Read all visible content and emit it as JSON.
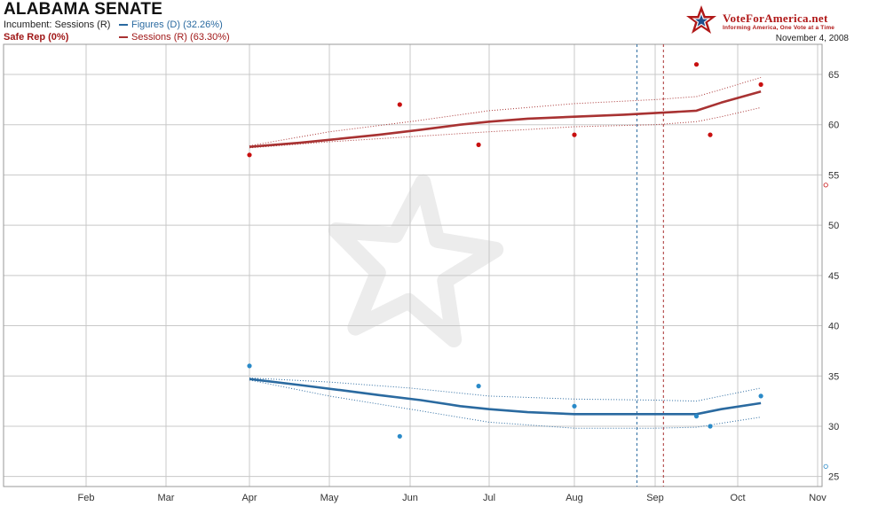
{
  "header": {
    "title": "ALABAMA SENATE",
    "incumbent": "Incumbent: Sessions (R)",
    "rating": "Safe Rep (0%)",
    "date": "November 4, 2008"
  },
  "brand": {
    "name": "VoteForAmerica.net",
    "tagline": "Informing America, One Vote at a Time",
    "logo_icon": "star-logo-icon"
  },
  "colors": {
    "dem": "#2a6aa0",
    "rep": "#a83232",
    "dem_point": "#2a8ac8",
    "rep_point": "#c81010",
    "grid": "#c8c8c8"
  },
  "chart_data": {
    "type": "line",
    "title": "ALABAMA SENATE",
    "xlabel": "",
    "ylabel": "",
    "x_axis_labels": [
      "Feb",
      "Mar",
      "Apr",
      "May",
      "Jun",
      "Jul",
      "Aug",
      "Sep",
      "Oct",
      "Nov"
    ],
    "x_axis_months": [
      2,
      3,
      4,
      5,
      6,
      7,
      8,
      9,
      10,
      11
    ],
    "ylim": [
      24,
      68
    ],
    "y_ticks": [
      25,
      30,
      35,
      40,
      45,
      50,
      55,
      60,
      65
    ],
    "grid": true,
    "legend_position": "top-left",
    "vertical_lines": [
      {
        "date": "2008-08-25",
        "color": "dem"
      },
      {
        "date": "2008-09-04",
        "color": "rep"
      }
    ],
    "series": [
      {
        "name": "Figures (D)",
        "share": "32.26%",
        "color_key": "dem",
        "trend": [
          [
            "2008-04-01",
            34.7
          ],
          [
            "2008-04-20",
            34.1
          ],
          [
            "2008-05-05",
            33.6
          ],
          [
            "2008-05-20",
            33.1
          ],
          [
            "2008-06-05",
            32.6
          ],
          [
            "2008-06-20",
            32.0
          ],
          [
            "2008-07-01",
            31.7
          ],
          [
            "2008-07-15",
            31.4
          ],
          [
            "2008-08-01",
            31.2
          ],
          [
            "2008-08-20",
            31.2
          ],
          [
            "2008-09-10",
            31.2
          ],
          [
            "2008-09-16",
            31.2
          ],
          [
            "2008-09-25",
            31.7
          ],
          [
            "2008-10-10",
            32.3
          ]
        ],
        "upper": [
          [
            "2008-04-01",
            34.8
          ],
          [
            "2008-05-01",
            34.4
          ],
          [
            "2008-06-01",
            33.8
          ],
          [
            "2008-07-01",
            33.0
          ],
          [
            "2008-08-01",
            32.7
          ],
          [
            "2008-09-01",
            32.6
          ],
          [
            "2008-09-16",
            32.5
          ],
          [
            "2008-09-25",
            33.0
          ],
          [
            "2008-10-10",
            33.8
          ]
        ],
        "lower": [
          [
            "2008-04-01",
            34.6
          ],
          [
            "2008-05-01",
            33.0
          ],
          [
            "2008-06-01",
            31.7
          ],
          [
            "2008-07-01",
            30.4
          ],
          [
            "2008-08-01",
            29.8
          ],
          [
            "2008-09-01",
            29.8
          ],
          [
            "2008-09-16",
            29.9
          ],
          [
            "2008-09-25",
            30.3
          ],
          [
            "2008-10-10",
            30.9
          ]
        ],
        "polls": [
          [
            "2008-04-01",
            36
          ],
          [
            "2008-05-28",
            29
          ],
          [
            "2008-06-27",
            34
          ],
          [
            "2008-08-01",
            32
          ],
          [
            "2008-09-16",
            31
          ],
          [
            "2008-09-21",
            30
          ],
          [
            "2008-10-10",
            33
          ]
        ],
        "result": [
          "2008-11-04",
          26
        ]
      },
      {
        "name": "Sessions (R)",
        "share": "63.30%",
        "color_key": "rep",
        "trend": [
          [
            "2008-04-01",
            57.8
          ],
          [
            "2008-04-20",
            58.2
          ],
          [
            "2008-05-05",
            58.6
          ],
          [
            "2008-05-20",
            59.0
          ],
          [
            "2008-06-05",
            59.5
          ],
          [
            "2008-06-20",
            60.0
          ],
          [
            "2008-07-01",
            60.3
          ],
          [
            "2008-07-15",
            60.6
          ],
          [
            "2008-08-01",
            60.8
          ],
          [
            "2008-08-20",
            61.0
          ],
          [
            "2008-09-10",
            61.3
          ],
          [
            "2008-09-16",
            61.4
          ],
          [
            "2008-09-25",
            62.2
          ],
          [
            "2008-10-10",
            63.3
          ]
        ],
        "upper": [
          [
            "2008-04-01",
            57.9
          ],
          [
            "2008-05-01",
            59.3
          ],
          [
            "2008-06-01",
            60.3
          ],
          [
            "2008-07-01",
            61.4
          ],
          [
            "2008-08-01",
            62.1
          ],
          [
            "2008-09-01",
            62.5
          ],
          [
            "2008-09-16",
            62.8
          ],
          [
            "2008-09-25",
            63.5
          ],
          [
            "2008-10-10",
            64.7
          ]
        ],
        "lower": [
          [
            "2008-04-01",
            57.7
          ],
          [
            "2008-05-01",
            58.3
          ],
          [
            "2008-06-01",
            58.8
          ],
          [
            "2008-07-01",
            59.3
          ],
          [
            "2008-08-01",
            59.8
          ],
          [
            "2008-09-01",
            60.0
          ],
          [
            "2008-09-16",
            60.3
          ],
          [
            "2008-09-25",
            60.8
          ],
          [
            "2008-10-10",
            61.7
          ]
        ],
        "polls": [
          [
            "2008-04-01",
            57
          ],
          [
            "2008-05-28",
            62
          ],
          [
            "2008-06-27",
            58
          ],
          [
            "2008-08-01",
            59
          ],
          [
            "2008-09-16",
            66
          ],
          [
            "2008-09-21",
            59
          ],
          [
            "2008-10-10",
            64
          ]
        ],
        "result": [
          "2008-11-04",
          54
        ]
      }
    ]
  }
}
